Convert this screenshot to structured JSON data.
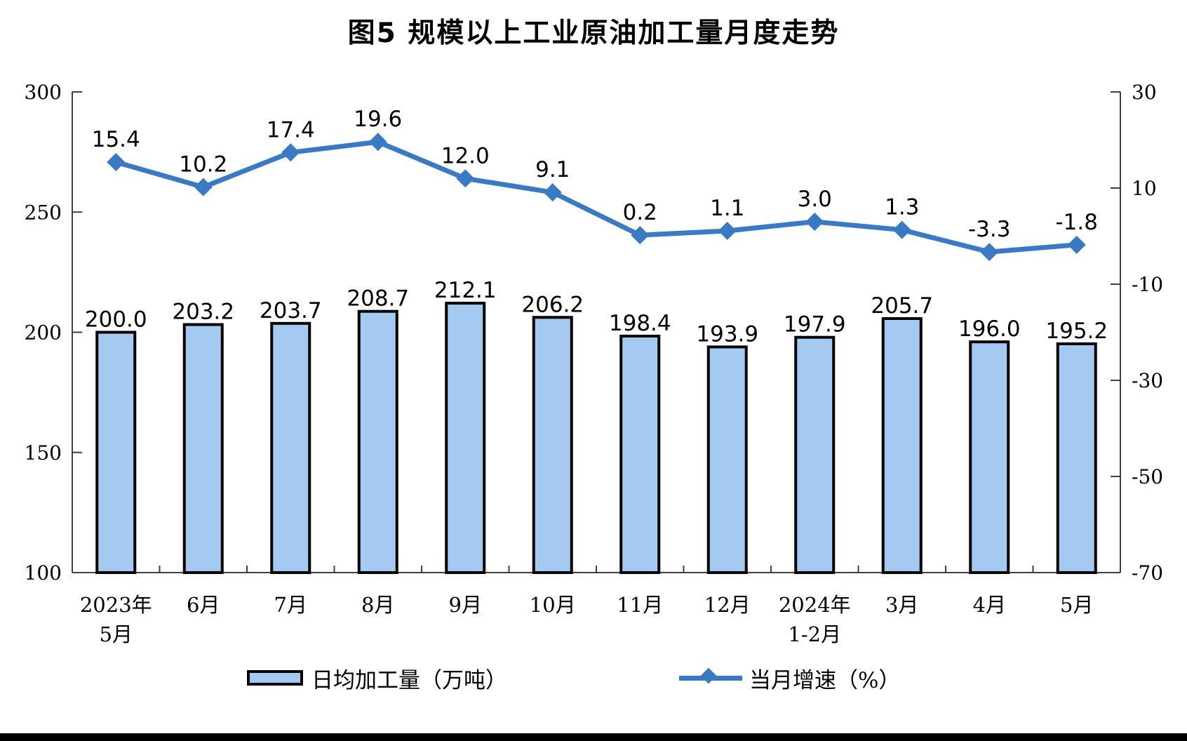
{
  "page": {
    "background": "#ffffff",
    "bottom_rule_color": "#000000"
  },
  "chart_data": {
    "type": "combo-bar-line",
    "title": "图5 规模以上工业原油加工量月度走势",
    "grid": false,
    "legend_position": "bottom",
    "categories": [
      {
        "label": "2023年",
        "sub": "5月"
      },
      {
        "label": "6月"
      },
      {
        "label": "7月"
      },
      {
        "label": "8月"
      },
      {
        "label": "9月"
      },
      {
        "label": "10月"
      },
      {
        "label": "11月"
      },
      {
        "label": "12月"
      },
      {
        "label": "2024年",
        "sub": "1-2月"
      },
      {
        "label": "3月"
      },
      {
        "label": "4月"
      },
      {
        "label": "5月"
      }
    ],
    "series": [
      {
        "name": "日均加工量（万吨）",
        "type": "bar",
        "axis": "left",
        "values": [
          200.0,
          203.2,
          203.7,
          208.7,
          212.1,
          206.2,
          198.4,
          193.9,
          197.9,
          205.7,
          196.0,
          195.2
        ],
        "labels": [
          "200.0",
          "203.2",
          "203.7",
          "208.7",
          "212.1",
          "206.2",
          "198.4",
          "193.9",
          "197.9",
          "205.7",
          "196.0",
          "195.2"
        ]
      },
      {
        "name": "当月增速（%）",
        "type": "line",
        "axis": "right",
        "values": [
          15.4,
          10.2,
          17.4,
          19.6,
          12.0,
          9.1,
          0.2,
          1.1,
          3.0,
          1.3,
          -3.3,
          -1.8
        ],
        "labels": [
          "15.4",
          "10.2",
          "17.4",
          "19.6",
          "12.0",
          "9.1",
          "0.2",
          "1.1",
          "3.0",
          "1.3",
          "-3.3",
          "-1.8"
        ]
      }
    ],
    "left_axis": {
      "min": 100,
      "max": 300,
      "ticks": [
        "300",
        "250",
        "200",
        "150",
        "100"
      ]
    },
    "right_axis": {
      "min": -70,
      "max": 30,
      "ticks": [
        "30",
        "10",
        "-10",
        "-30",
        "-50",
        "-70"
      ]
    },
    "colors": {
      "bar_fill": "#A4CAF2",
      "bar_border": "#000000",
      "line": "#3A7AC4",
      "axis": "#3f3f3f",
      "text": "#000000"
    }
  }
}
